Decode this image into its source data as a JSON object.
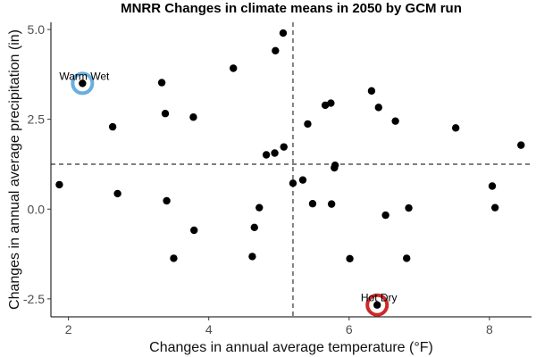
{
  "chart_data": {
    "type": "scatter",
    "title": "MNRR Changes in climate means in 2050 by GCM run",
    "xlabel": "Changes in annual average temperature (°F)",
    "ylabel": "Changes in annual average precipitation (in)",
    "xlim": [
      1.75,
      8.6
    ],
    "ylim": [
      -3.0,
      5.2
    ],
    "x_ticks": [
      2,
      4,
      6,
      8
    ],
    "x_tick_labels": [
      "2",
      "4",
      "6",
      "8"
    ],
    "y_ticks": [
      -2.5,
      0.0,
      2.5,
      5.0
    ],
    "y_tick_labels": [
      "-2.5",
      "0.0",
      "2.5",
      "5.0"
    ],
    "grid": false,
    "reference_lines": {
      "vertical_x": 5.2,
      "horizontal_y": 1.25,
      "style": "dashed"
    },
    "point_color": "#000000",
    "points": [
      {
        "x": 1.87,
        "y": 0.68
      },
      {
        "x": 2.2,
        "y": 3.5
      },
      {
        "x": 2.63,
        "y": 2.29
      },
      {
        "x": 2.7,
        "y": 0.43
      },
      {
        "x": 3.33,
        "y": 3.52
      },
      {
        "x": 3.38,
        "y": 2.66
      },
      {
        "x": 3.4,
        "y": 0.23
      },
      {
        "x": 3.5,
        "y": -1.37
      },
      {
        "x": 3.78,
        "y": 2.56
      },
      {
        "x": 3.79,
        "y": -0.59
      },
      {
        "x": 4.35,
        "y": 3.92
      },
      {
        "x": 4.62,
        "y": -1.32
      },
      {
        "x": 4.65,
        "y": -0.51
      },
      {
        "x": 4.72,
        "y": 0.04
      },
      {
        "x": 4.82,
        "y": 1.51
      },
      {
        "x": 4.94,
        "y": 1.56
      },
      {
        "x": 4.95,
        "y": 4.41
      },
      {
        "x": 5.06,
        "y": 4.9
      },
      {
        "x": 5.07,
        "y": 1.73
      },
      {
        "x": 5.2,
        "y": 0.72
      },
      {
        "x": 5.34,
        "y": 0.81
      },
      {
        "x": 5.41,
        "y": 2.37
      },
      {
        "x": 5.48,
        "y": 0.15
      },
      {
        "x": 5.66,
        "y": 2.89
      },
      {
        "x": 5.74,
        "y": 2.95
      },
      {
        "x": 5.75,
        "y": 0.14
      },
      {
        "x": 5.79,
        "y": 1.15
      },
      {
        "x": 5.8,
        "y": 1.22
      },
      {
        "x": 6.01,
        "y": -1.38
      },
      {
        "x": 6.32,
        "y": 3.29
      },
      {
        "x": 6.4,
        "y": -2.67
      },
      {
        "x": 6.42,
        "y": 2.83
      },
      {
        "x": 6.52,
        "y": -0.17
      },
      {
        "x": 6.66,
        "y": 2.45
      },
      {
        "x": 6.82,
        "y": -1.37
      },
      {
        "x": 6.85,
        "y": 0.03
      },
      {
        "x": 7.52,
        "y": 2.26
      },
      {
        "x": 8.04,
        "y": 0.64
      },
      {
        "x": 8.08,
        "y": 0.04
      },
      {
        "x": 8.45,
        "y": 1.78
      }
    ],
    "annotations": [
      {
        "label": "Warm Wet",
        "x": 2.2,
        "y": 3.5,
        "ring_color": "#6aaede"
      },
      {
        "label": "Hot Dry",
        "x": 6.4,
        "y": -2.67,
        "ring_color": "#cc2a2a"
      }
    ]
  }
}
